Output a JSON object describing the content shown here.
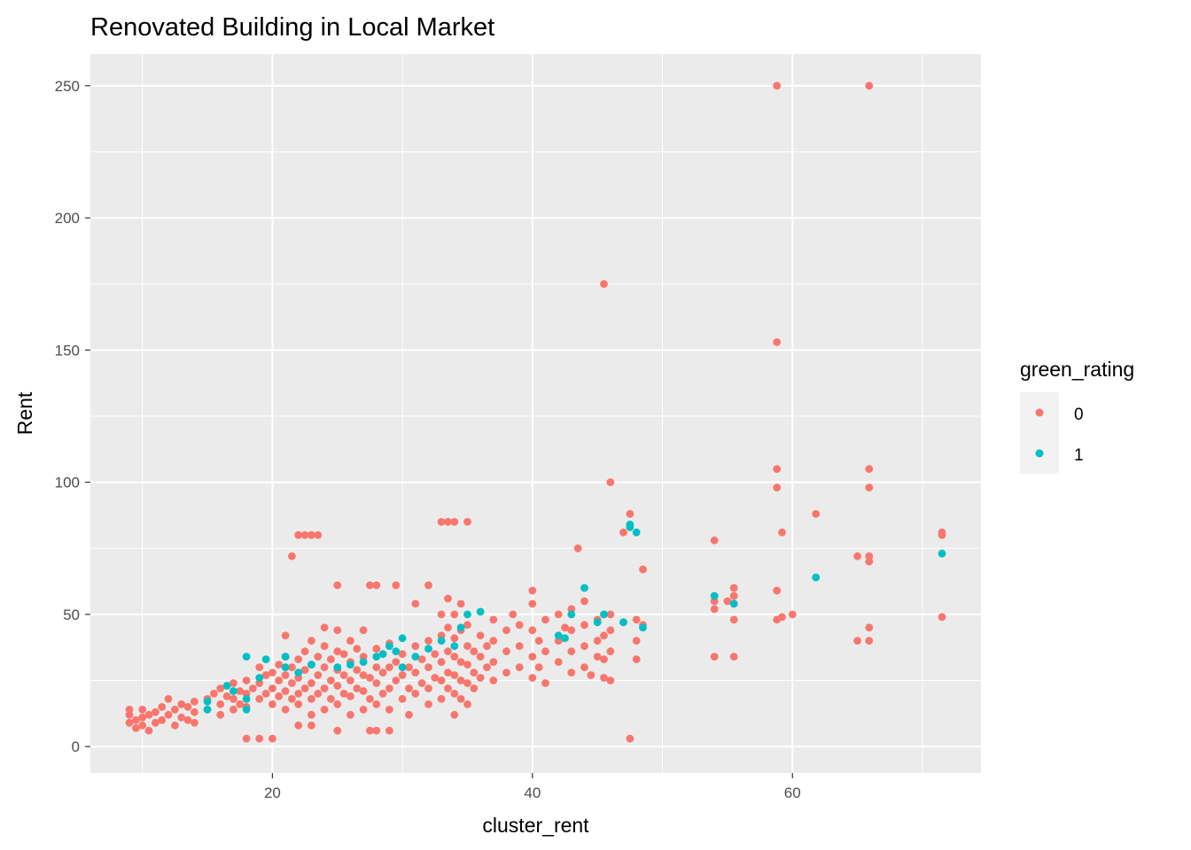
{
  "chart_data": {
    "type": "scatter",
    "title": "Renovated Building in Local Market",
    "xlabel": "cluster_rent",
    "ylabel": "Rent",
    "xlim": [
      6.0,
      74.5
    ],
    "ylim": [
      -10,
      262
    ],
    "x_ticks": [
      20,
      40,
      60
    ],
    "y_ticks": [
      0,
      50,
      100,
      150,
      200,
      250
    ],
    "x_tick_labels": [
      "20",
      "40",
      "60"
    ],
    "y_tick_labels": [
      "0",
      "50",
      "100",
      "150",
      "200",
      "250"
    ],
    "x_minor_ticks": [
      10,
      30,
      50,
      70
    ],
    "y_minor_ticks": [
      25,
      75,
      125,
      175,
      225
    ],
    "grid": true,
    "legend": {
      "title": "green_rating",
      "position": "right"
    },
    "series": [
      {
        "name": "0",
        "color": "#F8766D",
        "points": [
          [
            9,
            9
          ],
          [
            9,
            12
          ],
          [
            9,
            14
          ],
          [
            9.5,
            7
          ],
          [
            9.5,
            10
          ],
          [
            10,
            8
          ],
          [
            10,
            11
          ],
          [
            10,
            14
          ],
          [
            10.5,
            6
          ],
          [
            10.5,
            12
          ],
          [
            11,
            9
          ],
          [
            11,
            13
          ],
          [
            11.5,
            10
          ],
          [
            11.5,
            15
          ],
          [
            12,
            12
          ],
          [
            12,
            18
          ],
          [
            12.5,
            8
          ],
          [
            12.5,
            14
          ],
          [
            13,
            11
          ],
          [
            13,
            16
          ],
          [
            13.5,
            10
          ],
          [
            13.5,
            15
          ],
          [
            14,
            9
          ],
          [
            14,
            13
          ],
          [
            14,
            17
          ],
          [
            15,
            14
          ],
          [
            15,
            18
          ],
          [
            15.5,
            20
          ],
          [
            16,
            12
          ],
          [
            16,
            16
          ],
          [
            16,
            22
          ],
          [
            16.5,
            19
          ],
          [
            17,
            14
          ],
          [
            17,
            18
          ],
          [
            17,
            24
          ],
          [
            17.5,
            16
          ],
          [
            17.5,
            21
          ],
          [
            18,
            15
          ],
          [
            18,
            20
          ],
          [
            18,
            25
          ],
          [
            18,
            3
          ],
          [
            18.5,
            22
          ],
          [
            19,
            3
          ],
          [
            19,
            18
          ],
          [
            19,
            24
          ],
          [
            19,
            30
          ],
          [
            19.5,
            20
          ],
          [
            19.5,
            27
          ],
          [
            20,
            16
          ],
          [
            20,
            22
          ],
          [
            20,
            28
          ],
          [
            20,
            3
          ],
          [
            20.5,
            19
          ],
          [
            20.5,
            25
          ],
          [
            20.5,
            31
          ],
          [
            21,
            14
          ],
          [
            21,
            21
          ],
          [
            21,
            27
          ],
          [
            21,
            34
          ],
          [
            21,
            42
          ],
          [
            21.5,
            18
          ],
          [
            21.5,
            24
          ],
          [
            21.5,
            30
          ],
          [
            21.5,
            72
          ],
          [
            22,
            16
          ],
          [
            22,
            20
          ],
          [
            22,
            26
          ],
          [
            22,
            33
          ],
          [
            22,
            80
          ],
          [
            22,
            8
          ],
          [
            22.5,
            22
          ],
          [
            22.5,
            29
          ],
          [
            22.5,
            36
          ],
          [
            22.5,
            80
          ],
          [
            23,
            12
          ],
          [
            23,
            18
          ],
          [
            23,
            24
          ],
          [
            23,
            31
          ],
          [
            23,
            40
          ],
          [
            23,
            80
          ],
          [
            23,
            8
          ],
          [
            23.5,
            20
          ],
          [
            23.5,
            27
          ],
          [
            23.5,
            34
          ],
          [
            23.5,
            80
          ],
          [
            24,
            14
          ],
          [
            24,
            22
          ],
          [
            24,
            30
          ],
          [
            24,
            38
          ],
          [
            24,
            45
          ],
          [
            24.5,
            18
          ],
          [
            24.5,
            25
          ],
          [
            24.5,
            33
          ],
          [
            25,
            6
          ],
          [
            25,
            16
          ],
          [
            25,
            23
          ],
          [
            25,
            29
          ],
          [
            25,
            36
          ],
          [
            25,
            44
          ],
          [
            25,
            61
          ],
          [
            25.5,
            20
          ],
          [
            25.5,
            27
          ],
          [
            25.5,
            35
          ],
          [
            26,
            12
          ],
          [
            26,
            19
          ],
          [
            26,
            25
          ],
          [
            26,
            32
          ],
          [
            26,
            40
          ],
          [
            26.5,
            22
          ],
          [
            26.5,
            29
          ],
          [
            26.5,
            37
          ],
          [
            27,
            14
          ],
          [
            27,
            21
          ],
          [
            27,
            27
          ],
          [
            27,
            34
          ],
          [
            27,
            44
          ],
          [
            27.5,
            6
          ],
          [
            27.5,
            18
          ],
          [
            27.5,
            26
          ],
          [
            27.5,
            61
          ],
          [
            28,
            6
          ],
          [
            28,
            16
          ],
          [
            28,
            24
          ],
          [
            28,
            30
          ],
          [
            28,
            37
          ],
          [
            28,
            61
          ],
          [
            28.5,
            20
          ],
          [
            28.5,
            28
          ],
          [
            28.5,
            35
          ],
          [
            29,
            14
          ],
          [
            29,
            22
          ],
          [
            29,
            30
          ],
          [
            29,
            39
          ],
          [
            29,
            6
          ],
          [
            29.5,
            25
          ],
          [
            29.5,
            32
          ],
          [
            29.5,
            61
          ],
          [
            30,
            18
          ],
          [
            30,
            27
          ],
          [
            30,
            35
          ],
          [
            30.5,
            12
          ],
          [
            30.5,
            22
          ],
          [
            30.5,
            30
          ],
          [
            31,
            20
          ],
          [
            31,
            28
          ],
          [
            31,
            38
          ],
          [
            31,
            54
          ],
          [
            31.5,
            24
          ],
          [
            31.5,
            33
          ],
          [
            32,
            16
          ],
          [
            32,
            22
          ],
          [
            32,
            30
          ],
          [
            32,
            40
          ],
          [
            32,
            61
          ],
          [
            32.5,
            26
          ],
          [
            32.5,
            35
          ],
          [
            33,
            18
          ],
          [
            33,
            25
          ],
          [
            33,
            32
          ],
          [
            33,
            42
          ],
          [
            33,
            50
          ],
          [
            33,
            85
          ],
          [
            33.5,
            22
          ],
          [
            33.5,
            28
          ],
          [
            33.5,
            36
          ],
          [
            33.5,
            45
          ],
          [
            33.5,
            56
          ],
          [
            33.5,
            85
          ],
          [
            34,
            12
          ],
          [
            34,
            20
          ],
          [
            34,
            27
          ],
          [
            34,
            34
          ],
          [
            34,
            41
          ],
          [
            34,
            50
          ],
          [
            34,
            85
          ],
          [
            34.5,
            18
          ],
          [
            34.5,
            25
          ],
          [
            34.5,
            32
          ],
          [
            34.5,
            44
          ],
          [
            34.5,
            54
          ],
          [
            35,
            16
          ],
          [
            35,
            24
          ],
          [
            35,
            31
          ],
          [
            35,
            38
          ],
          [
            35,
            46
          ],
          [
            35,
            85
          ],
          [
            35.5,
            22
          ],
          [
            35.5,
            28
          ],
          [
            35.5,
            36
          ],
          [
            36,
            26
          ],
          [
            36,
            34
          ],
          [
            36,
            42
          ],
          [
            36.5,
            30
          ],
          [
            36.5,
            38
          ],
          [
            37,
            25
          ],
          [
            37,
            32
          ],
          [
            37,
            40
          ],
          [
            37,
            48
          ],
          [
            38,
            28
          ],
          [
            38,
            36
          ],
          [
            38,
            44
          ],
          [
            38.5,
            50
          ],
          [
            39,
            30
          ],
          [
            39,
            38
          ],
          [
            39,
            46
          ],
          [
            40,
            26
          ],
          [
            40,
            34
          ],
          [
            40,
            44
          ],
          [
            40,
            54
          ],
          [
            40,
            59
          ],
          [
            40.5,
            30
          ],
          [
            40.5,
            40
          ],
          [
            41,
            24
          ],
          [
            41,
            36
          ],
          [
            41,
            48
          ],
          [
            42,
            32
          ],
          [
            42,
            40
          ],
          [
            42,
            50
          ],
          [
            42.5,
            45
          ],
          [
            43,
            28
          ],
          [
            43,
            36
          ],
          [
            43,
            44
          ],
          [
            43,
            52
          ],
          [
            43.5,
            75
          ],
          [
            44,
            30
          ],
          [
            44,
            38
          ],
          [
            44,
            46
          ],
          [
            44,
            55
          ],
          [
            44.5,
            27
          ],
          [
            45,
            34
          ],
          [
            45,
            40
          ],
          [
            45,
            48
          ],
          [
            45.5,
            26
          ],
          [
            45.5,
            33
          ],
          [
            45.5,
            42
          ],
          [
            45.5,
            175
          ],
          [
            46,
            25
          ],
          [
            46,
            36
          ],
          [
            46,
            44
          ],
          [
            46,
            100
          ],
          [
            46,
            50
          ],
          [
            47,
            47
          ],
          [
            47,
            81
          ],
          [
            47.5,
            3
          ],
          [
            47.5,
            88
          ],
          [
            48,
            33
          ],
          [
            48,
            40
          ],
          [
            48,
            48
          ],
          [
            48.5,
            67
          ],
          [
            48.5,
            46
          ],
          [
            54,
            34
          ],
          [
            54,
            52
          ],
          [
            54,
            55
          ],
          [
            54,
            78
          ],
          [
            55,
            55
          ],
          [
            55.5,
            34
          ],
          [
            55.5,
            48
          ],
          [
            55.5,
            54
          ],
          [
            55.5,
            57
          ],
          [
            55.5,
            60
          ],
          [
            58.8,
            48
          ],
          [
            58.8,
            59
          ],
          [
            58.8,
            98
          ],
          [
            58.8,
            105
          ],
          [
            58.8,
            153
          ],
          [
            58.8,
            250
          ],
          [
            59.2,
            49
          ],
          [
            59.2,
            81
          ],
          [
            60,
            50
          ],
          [
            61.8,
            88
          ],
          [
            65,
            40
          ],
          [
            65,
            72
          ],
          [
            65.9,
            40
          ],
          [
            65.9,
            45
          ],
          [
            65.9,
            70
          ],
          [
            65.9,
            72
          ],
          [
            65.9,
            98
          ],
          [
            65.9,
            105
          ],
          [
            65.9,
            250
          ],
          [
            71.5,
            49
          ],
          [
            71.5,
            80
          ],
          [
            71.5,
            81
          ]
        ]
      },
      {
        "name": "1",
        "color": "#00BFC4",
        "points": [
          [
            15,
            14
          ],
          [
            15,
            17
          ],
          [
            16.5,
            23
          ],
          [
            17,
            21
          ],
          [
            18,
            14
          ],
          [
            18,
            18
          ],
          [
            18,
            34
          ],
          [
            19,
            26
          ],
          [
            19.5,
            33
          ],
          [
            21,
            30
          ],
          [
            21,
            34
          ],
          [
            22,
            28
          ],
          [
            23,
            31
          ],
          [
            25,
            30
          ],
          [
            26,
            31
          ],
          [
            27,
            32
          ],
          [
            28,
            34
          ],
          [
            28.5,
            35
          ],
          [
            29,
            38
          ],
          [
            29.5,
            36
          ],
          [
            30,
            30
          ],
          [
            30,
            41
          ],
          [
            31,
            34
          ],
          [
            32,
            37
          ],
          [
            33,
            40
          ],
          [
            34,
            38
          ],
          [
            34.5,
            45
          ],
          [
            35,
            50
          ],
          [
            36,
            51
          ],
          [
            42,
            42
          ],
          [
            42.5,
            41
          ],
          [
            43,
            50
          ],
          [
            44,
            60
          ],
          [
            45,
            47
          ],
          [
            45.5,
            50
          ],
          [
            47,
            47
          ],
          [
            47.5,
            83
          ],
          [
            47.5,
            84
          ],
          [
            48,
            81
          ],
          [
            48.5,
            45
          ],
          [
            54,
            57
          ],
          [
            55.5,
            54
          ],
          [
            61.8,
            64
          ],
          [
            71.5,
            73
          ]
        ]
      }
    ]
  }
}
